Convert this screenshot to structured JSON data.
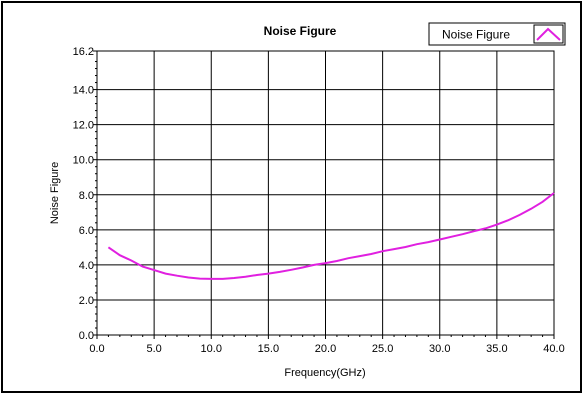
{
  "chart_data": {
    "type": "line",
    "title": "Noise Figure",
    "xlabel": "Frequency(GHz)",
    "ylabel": "Noise Figure",
    "xlim": [
      0,
      40
    ],
    "ylim": [
      0,
      16.2
    ],
    "x_ticks": [
      "0.0",
      "5.0",
      "10.0",
      "15.0",
      "20.0",
      "25.0",
      "30.0",
      "35.0",
      "40.0"
    ],
    "y_ticks": [
      "0.0",
      "2.0",
      "4.0",
      "6.0",
      "8.0",
      "10.0",
      "12.0",
      "14.0",
      "16.2"
    ],
    "grid": true,
    "legend_position": "top-right",
    "series": [
      {
        "name": "Noise Figure",
        "color": "#e020e0",
        "x": [
          1,
          2,
          3,
          4,
          5,
          6,
          7,
          8,
          9,
          10,
          11,
          12,
          13,
          14,
          15,
          16,
          17,
          18,
          19,
          20,
          21,
          22,
          23,
          24,
          25,
          26,
          27,
          28,
          29,
          30,
          31,
          32,
          33,
          34,
          35,
          36,
          37,
          38,
          39,
          40
        ],
        "y": [
          5.0,
          4.55,
          4.25,
          3.9,
          3.7,
          3.5,
          3.38,
          3.28,
          3.22,
          3.2,
          3.2,
          3.25,
          3.32,
          3.42,
          3.5,
          3.6,
          3.72,
          3.85,
          4.0,
          4.1,
          4.22,
          4.38,
          4.5,
          4.62,
          4.78,
          4.9,
          5.02,
          5.18,
          5.3,
          5.45,
          5.6,
          5.75,
          5.92,
          6.08,
          6.3,
          6.55,
          6.85,
          7.2,
          7.6,
          8.1
        ]
      }
    ]
  }
}
